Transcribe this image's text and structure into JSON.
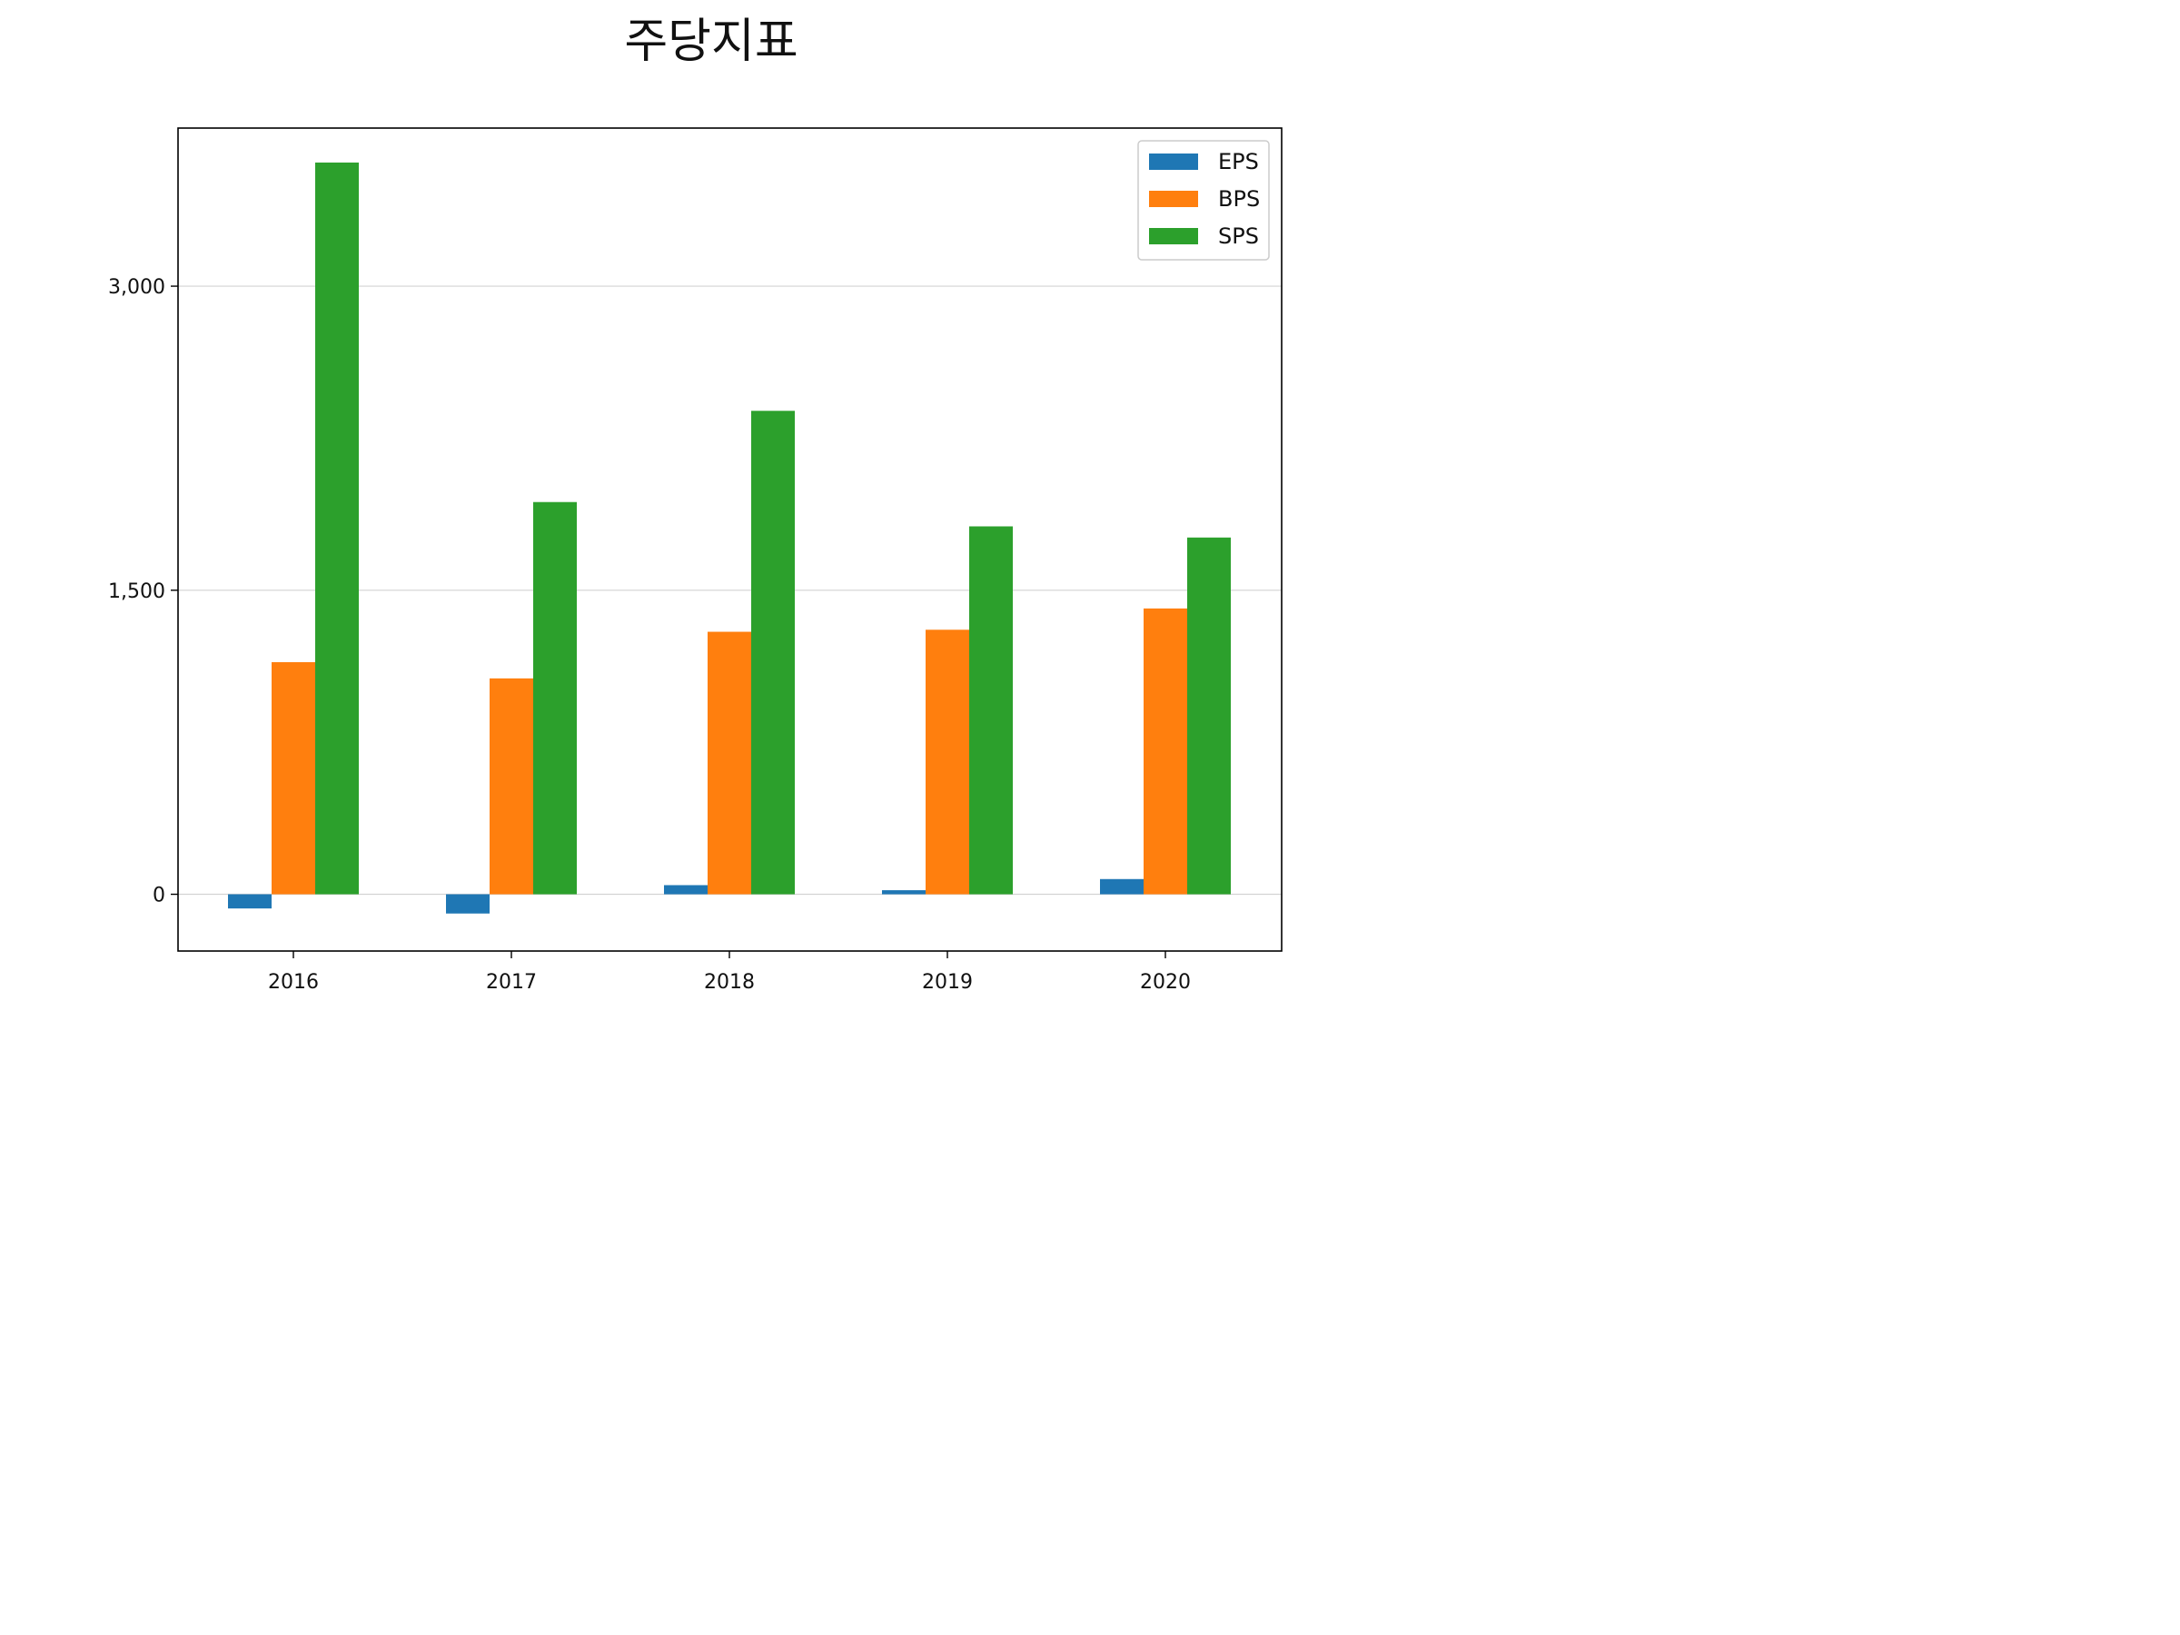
{
  "chart_data": {
    "type": "bar",
    "title": "주당지표",
    "xlabel": "",
    "ylabel": "",
    "categories": [
      "2016",
      "2017",
      "2018",
      "2019",
      "2020"
    ],
    "series": [
      {
        "name": "EPS",
        "color": "#1f77b4",
        "values": [
          -70,
          -95,
          45,
          20,
          75
        ]
      },
      {
        "name": "BPS",
        "color": "#ff7f0e",
        "values": [
          1145,
          1065,
          1295,
          1305,
          1410
        ]
      },
      {
        "name": "SPS",
        "color": "#2ca02c",
        "values": [
          3610,
          1935,
          2385,
          1815,
          1760
        ]
      }
    ],
    "ylim": [
      -280,
      3780
    ],
    "yticks": [
      0,
      1500,
      3000
    ],
    "ytick_labels": [
      "0",
      "1,500",
      "3,000"
    ],
    "grid": "y",
    "legend_position": "top-right"
  }
}
